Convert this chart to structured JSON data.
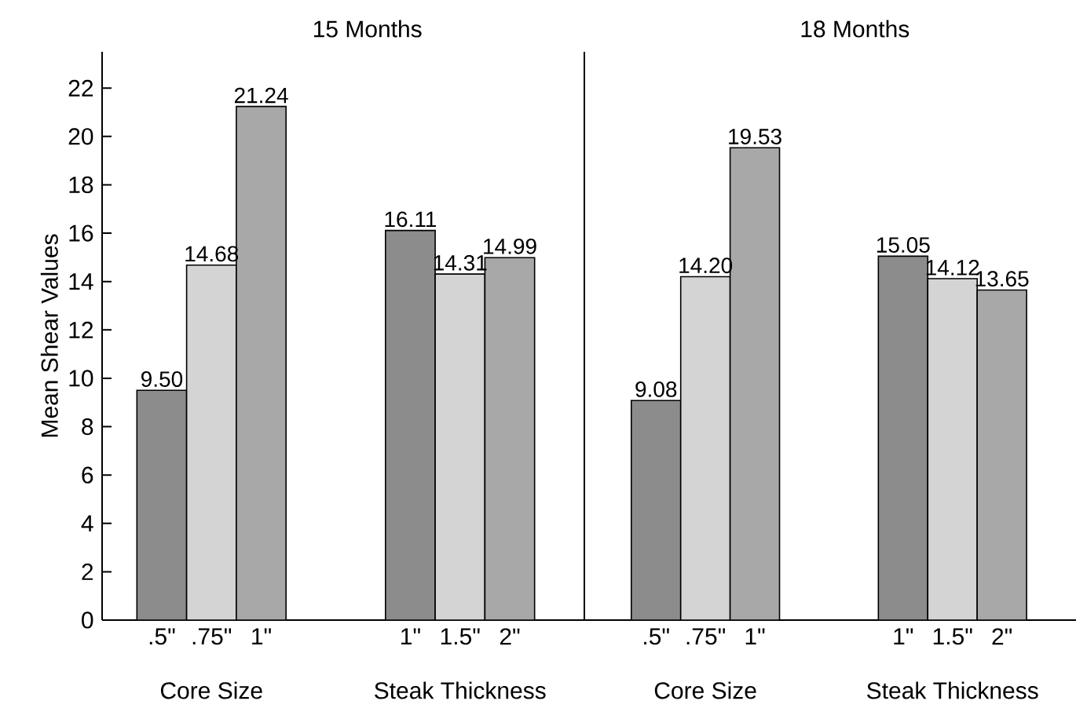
{
  "chart_data": [
    {
      "type": "bar",
      "title": "15 Months",
      "ylabel": "Mean Shear Values",
      "categories": [
        ".5\"",
        ".75\"",
        "1\"",
        null,
        null,
        "1\"",
        "1.5\"",
        "2\""
      ],
      "values": [
        9.5,
        14.68,
        21.24,
        null,
        null,
        16.11,
        14.31,
        14.99
      ],
      "value_labels": [
        "9.50",
        "14.68",
        "21.24",
        null,
        null,
        "16.11",
        "14.31",
        "14.99"
      ],
      "colors": [
        "#8c8c8c",
        "#d4d4d4",
        "#a8a8a8",
        null,
        null,
        "#8c8c8c",
        "#d4d4d4",
        "#a8a8a8"
      ],
      "annotations": [
        "Core Size",
        "Steak Thickness"
      ],
      "ylim": [
        0,
        23.5
      ],
      "yticks": [
        0,
        2,
        4,
        6,
        8,
        10,
        12,
        14,
        16,
        18,
        20,
        22
      ],
      "grid": false
    },
    {
      "type": "bar",
      "title": "18 Months",
      "categories": [
        ".5\"",
        ".75\"",
        "1\"",
        null,
        null,
        "1\"",
        "1.5\"",
        "2\""
      ],
      "values": [
        9.08,
        14.2,
        19.53,
        null,
        null,
        15.05,
        14.12,
        13.65
      ],
      "value_labels": [
        "9.08",
        "14.20",
        "19.53",
        null,
        null,
        "15.05",
        "14.12",
        "13.65"
      ],
      "colors": [
        "#8c8c8c",
        "#d4d4d4",
        "#a8a8a8",
        null,
        null,
        "#8c8c8c",
        "#d4d4d4",
        "#a8a8a8"
      ],
      "annotations": [
        "Core Size",
        "Steak Thickness"
      ],
      "tick_labels": "x",
      "grid": false
    }
  ]
}
